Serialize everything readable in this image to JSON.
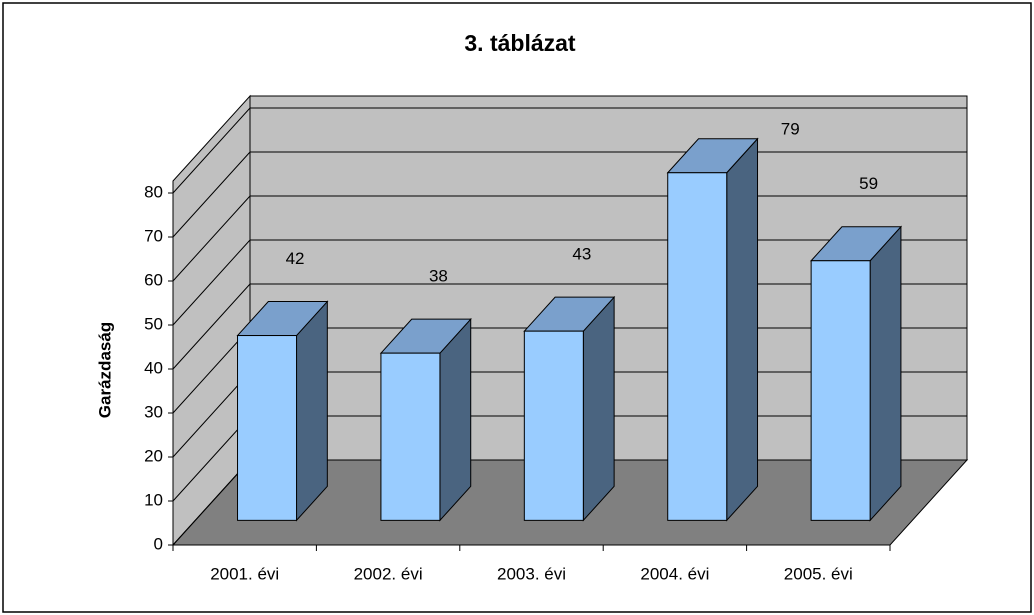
{
  "chart_data": {
    "type": "bar",
    "title": "3. táblázat",
    "y_label": "Garázdaság",
    "categories": [
      "2001. évi",
      "2002. évi",
      "2003. évi",
      "2004. évi",
      "2005. évi"
    ],
    "values": [
      42,
      38,
      43,
      79,
      59
    ],
    "color": "#99ccff",
    "ylim": [
      0,
      80
    ],
    "yticks": [
      0,
      10,
      20,
      30,
      40,
      50,
      60,
      70,
      80
    ],
    "grid": true
  }
}
